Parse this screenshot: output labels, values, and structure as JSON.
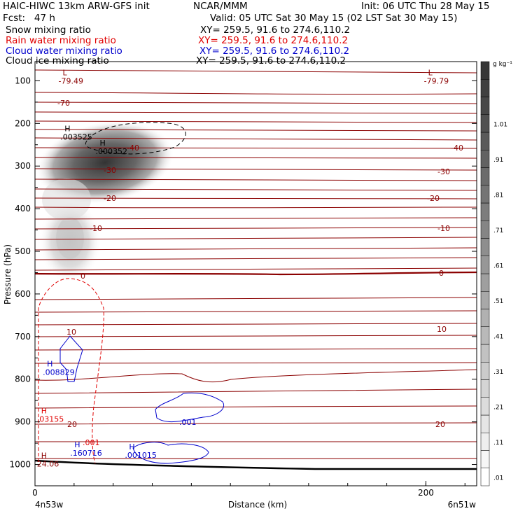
{
  "header": {
    "model": "HAIC-HIWC 13km ARW-GFS init",
    "org": "NCAR/MMM",
    "init": "Init: 06 UTC Thu 28 May 15",
    "fcst": "Fcst:   47 h",
    "valid": "Valid: 05 UTC Sat 30 May 15 (02 LST Sat 30 May 15)"
  },
  "fields": [
    {
      "label": "Snow mixing ratio",
      "xy": "XY= 259.5, 91.6 to 274.6,110.2",
      "color": "#000000"
    },
    {
      "label": "Rain water mixing ratio",
      "xy": "XY= 259.5, 91.6 to 274.6,110.2",
      "color": "#e00000"
    },
    {
      "label": "Cloud water mixing ratio",
      "xy": "XY= 259.5, 91.6 to 274.6,110.2",
      "color": "#0000cc"
    },
    {
      "label": "Cloud ice mixing ratio",
      "xy": "XY= 259.5, 91.6 to 274.6,110.2",
      "color": "#000000"
    }
  ],
  "chart_data": {
    "type": "contour",
    "xlabel": "Distance (km)",
    "ylabel": "Pressure (hPa)",
    "xlim": [
      0,
      226
    ],
    "ylim": [
      1050,
      55
    ],
    "x_ticks": [
      0,
      200
    ],
    "y_ticks": [
      100,
      200,
      300,
      400,
      500,
      600,
      700,
      800,
      900,
      1000
    ],
    "left_endpoint": "4n53w",
    "right_endpoint": "6n51w",
    "colorbar": {
      "unit": "g kg⁻¹",
      "levels": [
        0.01,
        0.06,
        0.11,
        0.16,
        0.21,
        0.26,
        0.31,
        0.36,
        0.41,
        0.46,
        0.51,
        0.56,
        0.61,
        0.66,
        0.71,
        0.76,
        0.81,
        0.86,
        0.91,
        0.96,
        1.01,
        1.06,
        1.11,
        1.16
      ],
      "tick_labels": [
        ".01",
        ".11",
        ".21",
        ".31",
        ".41",
        ".51",
        ".61",
        ".71",
        ".81",
        ".91",
        "1.01"
      ]
    },
    "temperature_contours": [
      -70,
      -40,
      -30,
      -20,
      -10,
      0,
      10,
      20
    ],
    "annotations": [
      {
        "text": "L",
        "value": "-79.49",
        "x": 12,
        "p": 87,
        "color": "#8b0000"
      },
      {
        "text": "L",
        "value": "-79.79",
        "x": 199,
        "p": 87,
        "color": "#8b0000"
      },
      {
        "text": "H",
        "value": ".003525",
        "x": 13,
        "p": 218,
        "color": "#000000"
      },
      {
        "text": "H",
        "value": ".000352",
        "x": 31,
        "p": 252,
        "color": "#000000"
      },
      {
        "text": "H",
        "value": ".008829",
        "x": 4,
        "p": 770,
        "color": "#0000cc"
      },
      {
        "text": "H",
        "value": ".03155",
        "x": 1,
        "p": 880,
        "color": "#e00000"
      },
      {
        "text": "H",
        "value": "24.06",
        "x": 1,
        "p": 985,
        "color": "#8b0000"
      },
      {
        "text": "H",
        "value": ".160716",
        "x": 18,
        "p": 960,
        "color": "#0000cc"
      },
      {
        "text": "H",
        "value": ".001015",
        "x": 46,
        "p": 965,
        "color": "#0000cc"
      }
    ],
    "contour_labels": [
      ".001",
      ".001"
    ]
  }
}
